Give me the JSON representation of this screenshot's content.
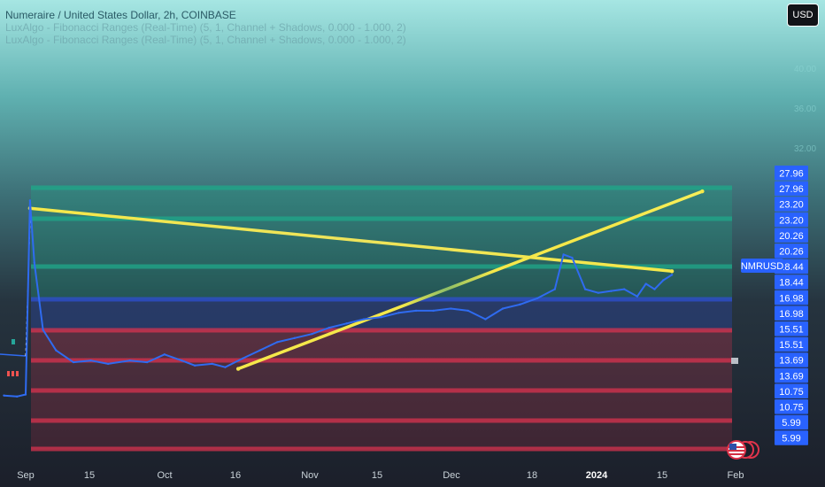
{
  "header": {
    "title": "Numeraire / United States Dollar, 2h, COINBASE",
    "indicator_1": "LuxAlgo - Fibonacci Ranges (Real-Time) (5, 1, Channel + Shadows, 0.000 - 1.000, 2)",
    "indicator_2": "LuxAlgo - Fibonacci Ranges (Real-Time) (5, 1, Channel + Shadows, 0.000 - 1.000, 2)"
  },
  "toolbar": {
    "currency_label": "USD"
  },
  "symbol_tag": "NMRUSD",
  "faint_price_ticks": [
    "40.00",
    "36.00",
    "32.00"
  ],
  "price_labels": [
    {
      "text": "27.96",
      "value": 27.96
    },
    {
      "text": "27.96",
      "value": 27.96
    },
    {
      "text": "23.20",
      "value": 23.2
    },
    {
      "text": "23.20",
      "value": 23.2
    },
    {
      "text": "20.26",
      "value": 20.26
    },
    {
      "text": "20.26",
      "value": 20.26
    },
    {
      "text": "18.44",
      "value": 18.44
    },
    {
      "text": "18.44",
      "value": 18.44
    },
    {
      "text": "16.98",
      "value": 16.98
    },
    {
      "text": "16.98",
      "value": 16.98
    },
    {
      "text": "15.51",
      "value": 15.51
    },
    {
      "text": "15.51",
      "value": 15.51
    },
    {
      "text": "13.69",
      "value": 13.69
    },
    {
      "text": "13.69",
      "value": 13.69
    },
    {
      "text": "10.75",
      "value": 10.75
    },
    {
      "text": "10.75",
      "value": 10.75
    },
    {
      "text": "5.99",
      "value": 5.99
    },
    {
      "text": "5.99",
      "value": 5.99
    }
  ],
  "x_ticks": [
    {
      "label": "Sep",
      "bold": false
    },
    {
      "label": "15",
      "bold": false
    },
    {
      "label": "Oct",
      "bold": false
    },
    {
      "label": "16",
      "bold": false
    },
    {
      "label": "Nov",
      "bold": false
    },
    {
      "label": "15",
      "bold": false
    },
    {
      "label": "Dec",
      "bold": false
    },
    {
      "label": "18",
      "bold": false
    },
    {
      "label": "2024",
      "bold": true
    },
    {
      "label": "15",
      "bold": false
    },
    {
      "label": "Feb",
      "bold": false
    }
  ],
  "colors": {
    "price_line": "#2f6bf0",
    "trend_line": "#f5e84a",
    "band_green": "#1fa88a",
    "band_blue": "#2d4fd0",
    "band_red": "#d8334f",
    "label_bg": "#2962ff"
  },
  "chart_data": {
    "type": "line",
    "title": "Numeraire / United States Dollar, 2h, COINBASE",
    "xlabel": "",
    "ylabel": "",
    "x": [
      "2023-08-27",
      "2023-08-30",
      "2023-09-01",
      "2023-09-02",
      "2023-09-03",
      "2023-09-05",
      "2023-09-08",
      "2023-09-12",
      "2023-09-16",
      "2023-09-20",
      "2023-09-25",
      "2023-09-29",
      "2023-10-03",
      "2023-10-07",
      "2023-10-10",
      "2023-10-14",
      "2023-10-17",
      "2023-10-21",
      "2023-10-25",
      "2023-10-29",
      "2023-11-02",
      "2023-11-06",
      "2023-11-10",
      "2023-11-14",
      "2023-11-18",
      "2023-11-22",
      "2023-11-26",
      "2023-11-30",
      "2023-12-04",
      "2023-12-08",
      "2023-12-12",
      "2023-12-16",
      "2023-12-20",
      "2023-12-24",
      "2023-12-28",
      "2024-01-01",
      "2024-01-03",
      "2024-01-05",
      "2024-01-08",
      "2024-01-11",
      "2024-01-14",
      "2024-01-17",
      "2024-01-20",
      "2024-01-22",
      "2024-01-24",
      "2024-01-26",
      "2024-01-28"
    ],
    "series": [
      {
        "values": [
          13.2,
          13.1,
          13.3,
          26.0,
          20.5,
          17.0,
          16.0,
          15.4,
          15.5,
          15.3,
          15.5,
          15.4,
          15.8,
          15.5,
          15.2,
          15.3,
          15.1,
          15.6,
          16.0,
          16.4,
          16.6,
          16.8,
          17.1,
          17.3,
          17.5,
          17.6,
          17.8,
          17.9,
          17.9,
          18.0,
          17.9,
          17.5,
          18.0,
          18.2,
          18.5,
          19.0,
          21.0,
          20.8,
          19.0,
          18.8,
          18.9,
          19.0,
          18.6,
          19.3,
          19.0,
          19.5,
          19.8
        ]
      }
    ],
    "ylim": [
      5.99,
      40.0
    ],
    "fib_levels": [
      5.99,
      10.75,
      13.69,
      15.51,
      16.98,
      18.44,
      20.26,
      23.2,
      27.96
    ],
    "trend_lines": [
      {
        "from": {
          "x": "2023-09-02",
          "y": 24.8
        },
        "to": {
          "x": "2024-01-28",
          "y": 20.0
        }
      },
      {
        "from": {
          "x": "2023-10-20",
          "y": 15.0
        },
        "to": {
          "x": "2024-02-04",
          "y": 27.4
        }
      }
    ],
    "grid": false,
    "legend": "none"
  }
}
